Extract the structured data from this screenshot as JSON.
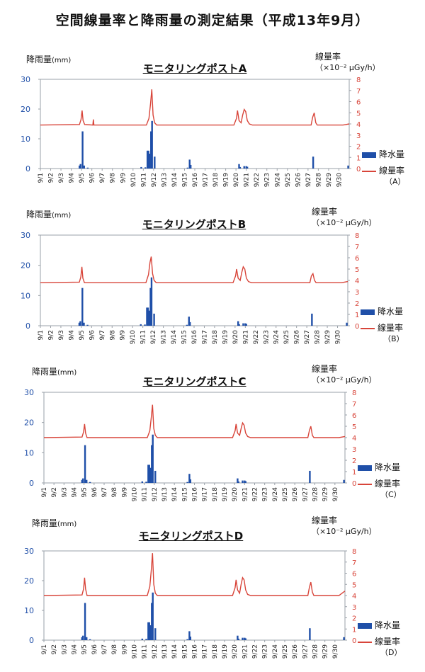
{
  "page": {
    "title": "空間線量率と降雨量の測定結果（平成13年9月）"
  },
  "labels": {
    "left_axis": "降雨量",
    "left_unit": "(mm)",
    "right_axis": "線量率",
    "right_unit": "（×10⁻² μGy/h）",
    "legend_rain": "降水量",
    "legend_dose": "線量率"
  },
  "colors": {
    "rain": "#1f4fa8",
    "dose": "#d8453a",
    "left_ticks": "#1f4fa8",
    "right_ticks": "#d8453a"
  },
  "chart_data": [
    {
      "type": "bar+line",
      "title": "モニタリングポストA",
      "legend_suffix": "（A）",
      "categories": [
        "9/1",
        "9/2",
        "9/3",
        "9/4",
        "9/5",
        "9/6",
        "9/7",
        "9/8",
        "9/9",
        "9/10",
        "9/11",
        "9/12",
        "9/13",
        "9/14",
        "9/15",
        "9/16",
        "9/17",
        "9/18",
        "9/19",
        "9/20",
        "9/21",
        "9/22",
        "9/23",
        "9/24",
        "9/25",
        "9/26",
        "9/27",
        "9/28",
        "9/29",
        "9/30"
      ],
      "left_axis": {
        "label": "降雨量(mm)",
        "range": [
          0,
          30
        ],
        "ticks": [
          0,
          10,
          20,
          30
        ]
      },
      "right_axis": {
        "label": "線量率（×10⁻² μGy/h）",
        "range": [
          0,
          8
        ],
        "ticks": [
          0,
          1,
          2,
          3,
          4,
          5,
          6,
          7,
          8
        ]
      },
      "rain": [
        [
          3.8,
          1
        ],
        [
          3.9,
          1.5
        ],
        [
          4.1,
          12.5
        ],
        [
          4.25,
          1
        ],
        [
          4.6,
          0.3
        ],
        [
          9.8,
          0.5
        ],
        [
          10.2,
          0.4
        ],
        [
          10.4,
          6
        ],
        [
          10.5,
          6
        ],
        [
          10.6,
          5
        ],
        [
          10.75,
          12.5
        ],
        [
          10.85,
          16
        ],
        [
          11.1,
          4
        ],
        [
          14.3,
          0.3
        ],
        [
          14.5,
          3
        ],
        [
          14.6,
          1.2
        ],
        [
          19.3,
          1.5
        ],
        [
          19.4,
          0.5
        ],
        [
          19.8,
          0.8
        ],
        [
          20.0,
          0.8
        ],
        [
          20.1,
          0.6
        ],
        [
          26.5,
          4
        ],
        [
          29.9,
          1
        ]
      ],
      "dose": [
        [
          0,
          3.9
        ],
        [
          3.8,
          3.95
        ],
        [
          3.95,
          4.4
        ],
        [
          4.05,
          5.2
        ],
        [
          4.15,
          4.3
        ],
        [
          4.3,
          3.95
        ],
        [
          5.1,
          3.9
        ],
        [
          5.15,
          4.4
        ],
        [
          5.2,
          3.9
        ],
        [
          10.3,
          3.9
        ],
        [
          10.55,
          4.5
        ],
        [
          10.7,
          5.8
        ],
        [
          10.82,
          7.1
        ],
        [
          10.95,
          4.8
        ],
        [
          11.1,
          4.1
        ],
        [
          11.3,
          3.9
        ],
        [
          18.8,
          3.9
        ],
        [
          19.05,
          4.5
        ],
        [
          19.15,
          5.2
        ],
        [
          19.3,
          4.3
        ],
        [
          19.5,
          4.1
        ],
        [
          19.65,
          4.8
        ],
        [
          19.8,
          5.3
        ],
        [
          19.95,
          5.1
        ],
        [
          20.1,
          4.3
        ],
        [
          20.3,
          4.0
        ],
        [
          20.6,
          3.9
        ],
        [
          26.3,
          3.9
        ],
        [
          26.45,
          4.6
        ],
        [
          26.6,
          5.0
        ],
        [
          26.75,
          4.1
        ],
        [
          26.9,
          3.9
        ],
        [
          29.4,
          3.9
        ],
        [
          29.7,
          3.95
        ],
        [
          30,
          4.0
        ]
      ]
    },
    {
      "type": "bar+line",
      "title": "モニタリングポストB",
      "legend_suffix": "（B）",
      "categories": [
        "9/1",
        "9/2",
        "9/3",
        "9/4",
        "9/5",
        "9/6",
        "9/7",
        "9/8",
        "9/9",
        "9/10",
        "9/11",
        "9/12",
        "9/13",
        "9/14",
        "9/15",
        "9/16",
        "9/17",
        "9/18",
        "9/19",
        "9/20",
        "9/21",
        "9/22",
        "9/23",
        "9/24",
        "9/25",
        "9/26",
        "9/27",
        "9/28",
        "9/29",
        "9/30"
      ],
      "left_axis": {
        "label": "降雨量(mm)",
        "range": [
          0,
          30
        ],
        "ticks": [
          0,
          10,
          20,
          30
        ]
      },
      "right_axis": {
        "label": "線量率（×10⁻² μGy/h）",
        "range": [
          0,
          8
        ],
        "ticks": [
          0,
          1,
          2,
          3,
          4,
          5,
          6,
          7,
          8
        ]
      },
      "rain": [
        [
          3.8,
          1
        ],
        [
          3.9,
          1.5
        ],
        [
          4.1,
          12.5
        ],
        [
          4.25,
          1
        ],
        [
          4.6,
          0.3
        ],
        [
          9.8,
          0.5
        ],
        [
          10.2,
          0.4
        ],
        [
          10.4,
          6
        ],
        [
          10.5,
          6
        ],
        [
          10.6,
          5
        ],
        [
          10.75,
          12.5
        ],
        [
          10.85,
          16
        ],
        [
          11.1,
          4
        ],
        [
          14.3,
          0.3
        ],
        [
          14.5,
          3
        ],
        [
          14.6,
          1.2
        ],
        [
          19.3,
          1.5
        ],
        [
          19.4,
          0.5
        ],
        [
          19.8,
          0.8
        ],
        [
          20.0,
          0.8
        ],
        [
          20.1,
          0.6
        ],
        [
          26.5,
          4
        ],
        [
          29.9,
          1
        ]
      ],
      "dose": [
        [
          0,
          3.8
        ],
        [
          3.8,
          3.85
        ],
        [
          3.95,
          4.3
        ],
        [
          4.05,
          5.2
        ],
        [
          4.15,
          4.2
        ],
        [
          4.3,
          3.8
        ],
        [
          10.3,
          3.8
        ],
        [
          10.55,
          4.5
        ],
        [
          10.7,
          5.6
        ],
        [
          10.82,
          6.1
        ],
        [
          10.95,
          4.6
        ],
        [
          11.1,
          4.0
        ],
        [
          11.3,
          3.8
        ],
        [
          18.8,
          3.8
        ],
        [
          19.05,
          4.4
        ],
        [
          19.15,
          5.0
        ],
        [
          19.3,
          4.2
        ],
        [
          19.5,
          4.0
        ],
        [
          19.65,
          4.7
        ],
        [
          19.8,
          5.2
        ],
        [
          19.95,
          5.0
        ],
        [
          20.1,
          4.2
        ],
        [
          20.3,
          3.9
        ],
        [
          20.6,
          3.8
        ],
        [
          26.3,
          3.8
        ],
        [
          26.45,
          4.4
        ],
        [
          26.6,
          4.6
        ],
        [
          26.75,
          4.0
        ],
        [
          26.9,
          3.8
        ],
        [
          29.4,
          3.8
        ],
        [
          30,
          3.9
        ]
      ]
    },
    {
      "type": "bar+line",
      "title": "モニタリングポストC",
      "legend_suffix": "（C）",
      "categories": [
        "9/1",
        "9/2",
        "9/3",
        "9/4",
        "9/5",
        "9/6",
        "9/7",
        "9/8",
        "9/9",
        "9/10",
        "9/11",
        "9/12",
        "9/13",
        "9/14",
        "9/15",
        "9/16",
        "9/17",
        "9/18",
        "9/19",
        "9/20",
        "9/21",
        "9/22",
        "9/23",
        "9/24",
        "9/25",
        "9/26",
        "9/27",
        "9/28",
        "9/29",
        "9/30"
      ],
      "left_axis": {
        "label": "降雨量(mm)",
        "range": [
          0,
          30
        ],
        "ticks": [
          0,
          10,
          20,
          30
        ]
      },
      "right_axis": {
        "label": "線量率（×10⁻² μGy/h）",
        "range": [
          0,
          8
        ],
        "ticks": [
          0,
          1,
          2,
          3,
          4,
          5,
          6,
          7,
          8
        ]
      },
      "rain": [
        [
          3.8,
          1
        ],
        [
          3.9,
          1.5
        ],
        [
          4.1,
          12.5
        ],
        [
          4.25,
          1
        ],
        [
          4.6,
          0.3
        ],
        [
          9.8,
          0.5
        ],
        [
          10.2,
          0.4
        ],
        [
          10.4,
          6
        ],
        [
          10.5,
          6
        ],
        [
          10.6,
          5
        ],
        [
          10.75,
          12.5
        ],
        [
          10.85,
          16
        ],
        [
          11.1,
          4
        ],
        [
          14.3,
          0.3
        ],
        [
          14.5,
          3
        ],
        [
          14.6,
          1.2
        ],
        [
          19.3,
          1.5
        ],
        [
          19.4,
          0.5
        ],
        [
          19.8,
          0.8
        ],
        [
          20.0,
          0.8
        ],
        [
          20.1,
          0.6
        ],
        [
          26.5,
          4
        ],
        [
          29.9,
          1
        ]
      ],
      "dose": [
        [
          0,
          4.0
        ],
        [
          3.8,
          4.05
        ],
        [
          3.95,
          4.5
        ],
        [
          4.05,
          5.2
        ],
        [
          4.15,
          4.4
        ],
        [
          4.3,
          4.0
        ],
        [
          10.3,
          4.0
        ],
        [
          10.55,
          4.6
        ],
        [
          10.7,
          5.8
        ],
        [
          10.82,
          6.9
        ],
        [
          10.95,
          4.8
        ],
        [
          11.1,
          4.2
        ],
        [
          11.3,
          4.0
        ],
        [
          18.8,
          4.0
        ],
        [
          19.05,
          4.6
        ],
        [
          19.15,
          5.2
        ],
        [
          19.3,
          4.4
        ],
        [
          19.5,
          4.2
        ],
        [
          19.65,
          4.8
        ],
        [
          19.8,
          5.3
        ],
        [
          19.95,
          5.1
        ],
        [
          20.1,
          4.4
        ],
        [
          20.3,
          4.1
        ],
        [
          20.6,
          4.0
        ],
        [
          26.3,
          4.0
        ],
        [
          26.45,
          4.6
        ],
        [
          26.6,
          5.0
        ],
        [
          26.75,
          4.2
        ],
        [
          26.9,
          4.0
        ],
        [
          29.4,
          4.0
        ],
        [
          30,
          4.1
        ]
      ]
    },
    {
      "type": "bar+line",
      "title": "モニタリングポストD",
      "legend_suffix": "（D）",
      "categories": [
        "9/1",
        "9/2",
        "9/3",
        "9/4",
        "9/5",
        "9/6",
        "9/7",
        "9/8",
        "9/9",
        "9/10",
        "9/11",
        "9/12",
        "9/13",
        "9/14",
        "9/15",
        "9/16",
        "9/17",
        "9/18",
        "9/19",
        "9/20",
        "9/21",
        "9/22",
        "9/23",
        "9/24",
        "9/25",
        "9/26",
        "9/27",
        "9/28",
        "9/29",
        "9/30"
      ],
      "left_axis": {
        "label": "降雨量(mm)",
        "range": [
          0,
          30
        ],
        "ticks": [
          0,
          10,
          20,
          30
        ]
      },
      "right_axis": {
        "label": "線量率（×10⁻² μGy/h）",
        "range": [
          0,
          8
        ],
        "ticks": [
          0,
          1,
          2,
          3,
          4,
          5,
          6,
          7,
          8
        ]
      },
      "rain": [
        [
          3.8,
          1
        ],
        [
          3.9,
          1.5
        ],
        [
          4.1,
          12.5
        ],
        [
          4.25,
          1
        ],
        [
          4.6,
          0.3
        ],
        [
          9.8,
          0.5
        ],
        [
          10.2,
          0.4
        ],
        [
          10.4,
          6
        ],
        [
          10.5,
          6
        ],
        [
          10.6,
          5
        ],
        [
          10.75,
          12.5
        ],
        [
          10.85,
          16
        ],
        [
          11.1,
          4
        ],
        [
          14.3,
          0.3
        ],
        [
          14.5,
          3
        ],
        [
          14.6,
          1.2
        ],
        [
          19.3,
          1.5
        ],
        [
          19.4,
          0.5
        ],
        [
          19.8,
          0.8
        ],
        [
          20.0,
          0.8
        ],
        [
          20.1,
          0.6
        ],
        [
          26.5,
          4
        ],
        [
          29.9,
          1
        ]
      ],
      "dose": [
        [
          0,
          4.0
        ],
        [
          3.8,
          4.05
        ],
        [
          3.95,
          4.6
        ],
        [
          4.05,
          5.6
        ],
        [
          4.15,
          4.6
        ],
        [
          4.3,
          4.0
        ],
        [
          10.3,
          4.0
        ],
        [
          10.55,
          4.8
        ],
        [
          10.7,
          6.3
        ],
        [
          10.82,
          7.8
        ],
        [
          10.95,
          5.0
        ],
        [
          11.1,
          4.2
        ],
        [
          11.3,
          4.0
        ],
        [
          18.8,
          4.0
        ],
        [
          19.05,
          4.7
        ],
        [
          19.15,
          5.4
        ],
        [
          19.3,
          4.5
        ],
        [
          19.5,
          4.2
        ],
        [
          19.65,
          5.0
        ],
        [
          19.8,
          5.6
        ],
        [
          19.95,
          5.4
        ],
        [
          20.1,
          4.5
        ],
        [
          20.3,
          4.1
        ],
        [
          20.6,
          4.0
        ],
        [
          26.3,
          4.0
        ],
        [
          26.45,
          4.7
        ],
        [
          26.6,
          5.2
        ],
        [
          26.75,
          4.3
        ],
        [
          26.9,
          4.0
        ],
        [
          29.4,
          4.0
        ],
        [
          30,
          4.4
        ]
      ]
    }
  ]
}
